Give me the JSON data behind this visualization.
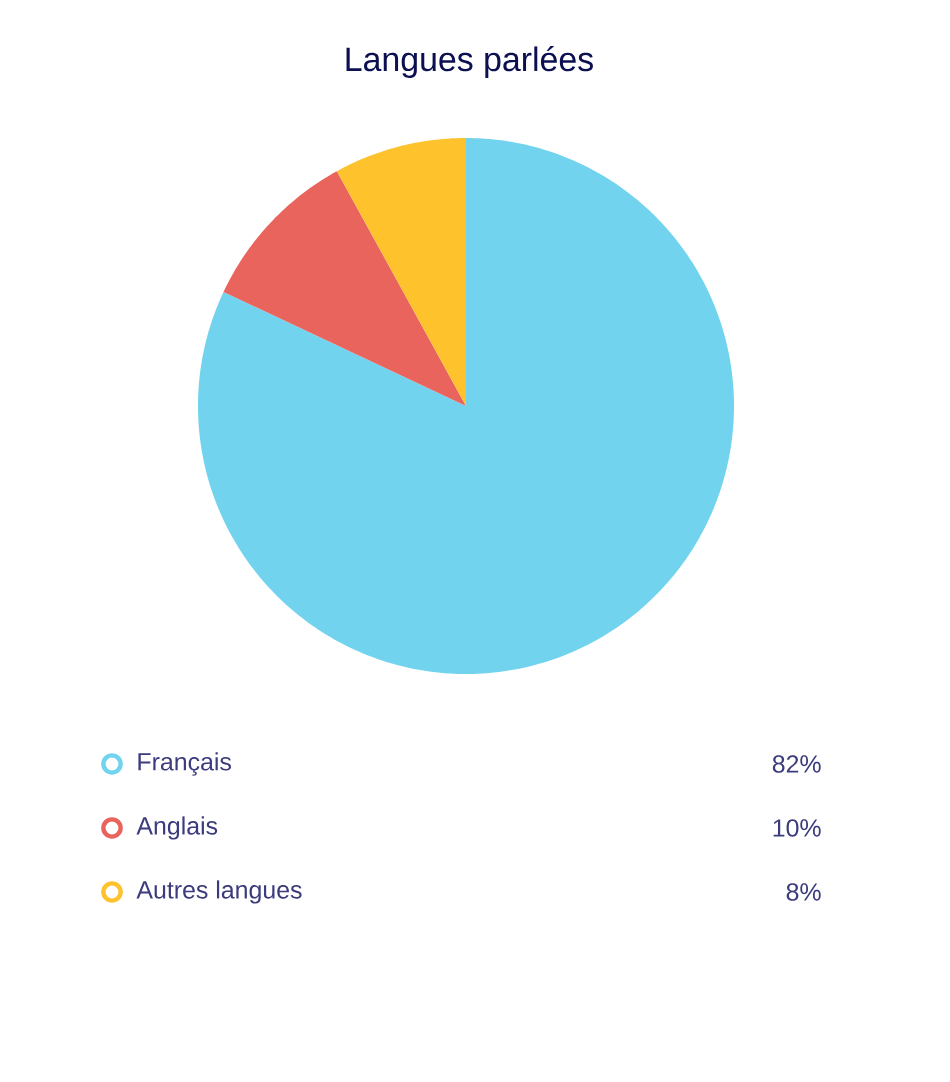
{
  "chart_data": {
    "type": "pie",
    "title": "Langues parlées",
    "categories": [
      "Français",
      "Anglais",
      "Autres langues"
    ],
    "values": [
      82,
      10,
      8
    ],
    "value_labels": [
      "82%",
      "10%",
      "8%"
    ],
    "colors": [
      "#72d3ee",
      "#e9645c",
      "#fdc22c"
    ],
    "legend": "bottom"
  }
}
